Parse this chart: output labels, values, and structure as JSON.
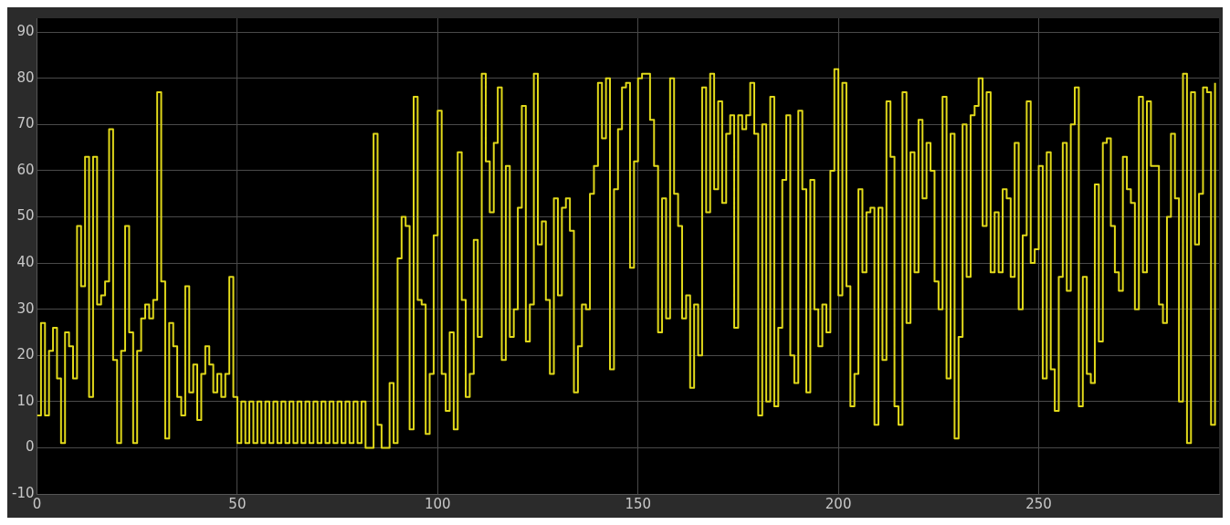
{
  "chart_data": {
    "type": "step",
    "xlim": [
      0,
      295
    ],
    "ylim": [
      -10,
      93
    ],
    "xticks": [
      0,
      50,
      100,
      150,
      200,
      250
    ],
    "yticks": [
      -10,
      0,
      10,
      20,
      30,
      40,
      50,
      60,
      70,
      80,
      90
    ],
    "grid": true,
    "legend": false,
    "x": [
      0,
      1,
      2,
      3,
      4,
      5,
      6,
      7,
      8,
      9,
      10,
      11,
      12,
      13,
      14,
      15,
      16,
      17,
      18,
      19,
      20,
      21,
      22,
      23,
      24,
      25,
      26,
      27,
      28,
      29,
      30,
      31,
      32,
      33,
      34,
      35,
      36,
      37,
      38,
      39,
      40,
      41,
      42,
      43,
      44,
      45,
      46,
      47,
      48,
      49,
      50,
      51,
      52,
      53,
      54,
      55,
      56,
      57,
      58,
      59,
      60,
      61,
      62,
      63,
      64,
      65,
      66,
      67,
      68,
      69,
      70,
      71,
      72,
      73,
      74,
      75,
      76,
      77,
      78,
      79,
      80,
      81,
      82,
      83,
      84,
      85,
      86,
      87,
      88,
      89,
      90,
      91,
      92,
      93,
      94,
      95,
      96,
      97,
      98,
      99,
      100,
      101,
      102,
      103,
      104,
      105,
      106,
      107,
      108,
      109,
      110,
      111,
      112,
      113,
      114,
      115,
      116,
      117,
      118,
      119,
      120,
      121,
      122,
      123,
      124,
      125,
      126,
      127,
      128,
      129,
      130,
      131,
      132,
      133,
      134,
      135,
      136,
      137,
      138,
      139,
      140,
      141,
      142,
      143,
      144,
      145,
      146,
      147,
      148,
      149,
      150,
      151,
      152,
      153,
      154,
      155,
      156,
      157,
      158,
      159,
      160,
      161,
      162,
      163,
      164,
      165,
      166,
      167,
      168,
      169,
      170,
      171,
      172,
      173,
      174,
      175,
      176,
      177,
      178,
      179,
      180,
      181,
      182,
      183,
      184,
      185,
      186,
      187,
      188,
      189,
      190,
      191,
      192,
      193,
      194,
      195,
      196,
      197,
      198,
      199,
      200,
      201,
      202,
      203,
      204,
      205,
      206,
      207,
      208,
      209,
      210,
      211,
      212,
      213,
      214,
      215,
      216,
      217,
      218,
      219,
      220,
      221,
      222,
      223,
      224,
      225,
      226,
      227,
      228,
      229,
      230,
      231,
      232,
      233,
      234,
      235,
      236,
      237,
      238,
      239,
      240,
      241,
      242,
      243,
      244,
      245,
      246,
      247,
      248,
      249,
      250,
      251,
      252,
      253,
      254,
      255,
      256,
      257,
      258,
      259,
      260,
      261,
      262,
      263,
      264,
      265,
      266,
      267,
      268,
      269,
      270,
      271,
      272,
      273,
      274,
      275,
      276,
      277,
      278,
      279,
      280,
      281,
      282,
      283,
      284,
      285,
      286,
      287,
      288,
      289,
      290,
      291,
      292,
      293,
      294
    ],
    "series": [
      {
        "color": "#e0d81a",
        "values": [
          7,
          27,
          7,
          21,
          26,
          15,
          1,
          25,
          22,
          15,
          48,
          35,
          63,
          11,
          63,
          31,
          33,
          36,
          69,
          19,
          1,
          21,
          48,
          25,
          1,
          21,
          28,
          31,
          28,
          32,
          77,
          36,
          2,
          27,
          22,
          11,
          7,
          35,
          12,
          18,
          6,
          16,
          22,
          18,
          12,
          16,
          11,
          16,
          37,
          11,
          1,
          10,
          1,
          10,
          1,
          10,
          1,
          10,
          1,
          10,
          1,
          10,
          1,
          10,
          1,
          10,
          1,
          10,
          1,
          10,
          1,
          10,
          1,
          10,
          1,
          10,
          1,
          10,
          1,
          10,
          1,
          10,
          0,
          0,
          68,
          5,
          0,
          0,
          14,
          1,
          41,
          50,
          48,
          4,
          76,
          32,
          31,
          3,
          16,
          46,
          73,
          16,
          8,
          25,
          4,
          64,
          32,
          11,
          16,
          45,
          24,
          81,
          62,
          51,
          66,
          78,
          19,
          61,
          24,
          30,
          52,
          74,
          23,
          31,
          81,
          44,
          49,
          32,
          16,
          54,
          33,
          52,
          54,
          47,
          12,
          22,
          31,
          30,
          55,
          61,
          79,
          67,
          80,
          17,
          56,
          69,
          78,
          79,
          39,
          62,
          80,
          81,
          81,
          71,
          61,
          25,
          54,
          28,
          80,
          55,
          48,
          28,
          33,
          13,
          31,
          20,
          78,
          51,
          81,
          56,
          75,
          53,
          68,
          72,
          26,
          72,
          69,
          72,
          79,
          68,
          7,
          70,
          10,
          76,
          9,
          26,
          58,
          72,
          20,
          14,
          73,
          56,
          12,
          58,
          30,
          22,
          31,
          25,
          60,
          82,
          33,
          79,
          35,
          9,
          16,
          56,
          38,
          51,
          52,
          5,
          52,
          19,
          75,
          63,
          9,
          5,
          77,
          27,
          64,
          38,
          71,
          54,
          66,
          60,
          36,
          30,
          76,
          15,
          68,
          2,
          24,
          70,
          37,
          72,
          74,
          80,
          48,
          77,
          38,
          51,
          38,
          56,
          54,
          37,
          66,
          30,
          46,
          75,
          40,
          43,
          61,
          15,
          64,
          17,
          8,
          37,
          66,
          34,
          70,
          78,
          9,
          37,
          16,
          14,
          57,
          23,
          66,
          67,
          48,
          38,
          34,
          63,
          56,
          53,
          30,
          76,
          38,
          75,
          61,
          61,
          31,
          27,
          50,
          68,
          54,
          10,
          81,
          1,
          77,
          44,
          55,
          78,
          77,
          5,
          79
        ]
      }
    ]
  }
}
